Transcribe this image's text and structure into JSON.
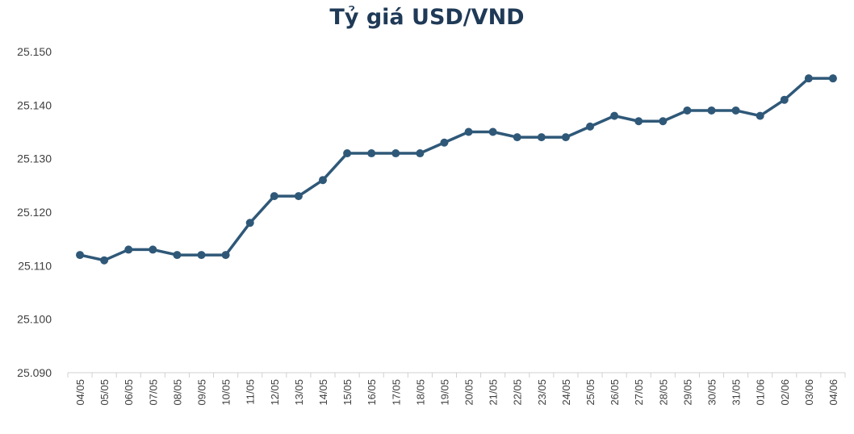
{
  "chart_data": {
    "type": "line",
    "title": "Tỷ giá USD/VND",
    "xlabel": "",
    "ylabel": "",
    "ylim": [
      25090,
      25150
    ],
    "yticks": [
      "25.090",
      "25.100",
      "25.110",
      "25.120",
      "25.130",
      "25.140",
      "25.150"
    ],
    "grid": false,
    "line_color": "#2f5878",
    "categories": [
      "04/05",
      "05/05",
      "06/05",
      "07/05",
      "08/05",
      "09/05",
      "10/05",
      "11/05",
      "12/05",
      "13/05",
      "14/05",
      "15/05",
      "16/05",
      "17/05",
      "18/05",
      "19/05",
      "20/05",
      "21/05",
      "22/05",
      "23/05",
      "24/05",
      "25/05",
      "26/05",
      "27/05",
      "28/05",
      "29/05",
      "30/05",
      "31/05",
      "01/06",
      "02/06",
      "03/06",
      "04/06"
    ],
    "series": [
      {
        "values": [
          25112,
          25111,
          25113,
          25113,
          25112,
          25112,
          25112,
          25118,
          25123,
          25123,
          25126,
          25131,
          25131,
          25131,
          25131,
          25133,
          25135,
          25135,
          25134,
          25134,
          25134,
          25136,
          25138,
          25137,
          25137,
          25139,
          25139,
          25139,
          25138,
          25141,
          25145,
          25145
        ]
      }
    ]
  }
}
